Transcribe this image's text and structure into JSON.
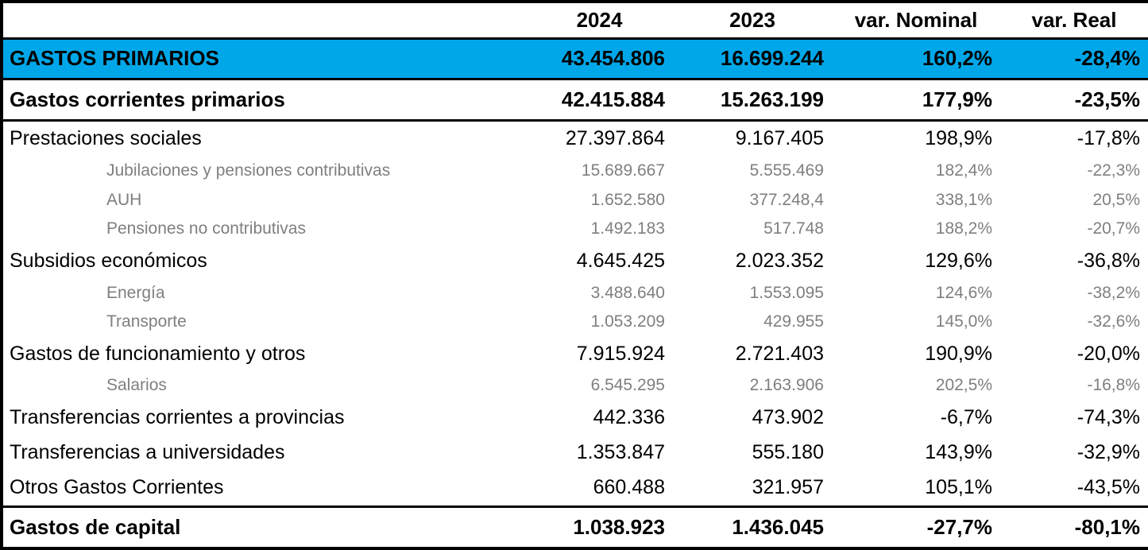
{
  "chart_data": {
    "type": "table",
    "columns": [
      "",
      "2024",
      "2023",
      "var. Nominal",
      "var. Real"
    ],
    "rows": [
      {
        "label": "GASTOS PRIMARIOS",
        "values": [
          "43.454.806",
          "16.699.244",
          "160,2%",
          "-28,4%"
        ],
        "style": "highlight"
      },
      {
        "label": "Gastos corrientes primarios",
        "values": [
          "42.415.884",
          "15.263.199",
          "177,9%",
          "-23,5%"
        ],
        "style": "boldline"
      },
      {
        "label": "Prestaciones sociales",
        "values": [
          "27.397.864",
          "9.167.405",
          "198,9%",
          "-17,8%"
        ],
        "style": "main"
      },
      {
        "label": "Jubilaciones y pensiones contributivas",
        "values": [
          "15.689.667",
          "5.555.469",
          "182,4%",
          "-22,3%"
        ],
        "style": "sub"
      },
      {
        "label": "AUH",
        "values": [
          "1.652.580",
          "377.248,4",
          "338,1%",
          "20,5%"
        ],
        "style": "sub"
      },
      {
        "label": "Pensiones no contributivas",
        "values": [
          "1.492.183",
          "517.748",
          "188,2%",
          "-20,7%"
        ],
        "style": "sub"
      },
      {
        "label": "Subsidios económicos",
        "values": [
          "4.645.425",
          "2.023.352",
          "129,6%",
          "-36,8%"
        ],
        "style": "main"
      },
      {
        "label": "Energía",
        "values": [
          "3.488.640",
          "1.553.095",
          "124,6%",
          "-38,2%"
        ],
        "style": "sub"
      },
      {
        "label": "Transporte",
        "values": [
          "1.053.209",
          "429.955",
          "145,0%",
          "-32,6%"
        ],
        "style": "sub"
      },
      {
        "label": "Gastos de funcionamiento y otros",
        "values": [
          "7.915.924",
          "2.721.403",
          "190,9%",
          "-20,0%"
        ],
        "style": "main"
      },
      {
        "label": "Salarios",
        "values": [
          "6.545.295",
          "2.163.906",
          "202,5%",
          "-16,8%"
        ],
        "style": "sub"
      },
      {
        "label": "Transferencias corrientes a provincias",
        "values": [
          "442.336",
          "473.902",
          "-6,7%",
          "-74,3%"
        ],
        "style": "main"
      },
      {
        "label": "Transferencias a universidades",
        "values": [
          "1.353.847",
          "555.180",
          "143,9%",
          "-32,9%"
        ],
        "style": "main"
      },
      {
        "label": "Otros Gastos Corrientes",
        "values": [
          "660.488",
          "321.957",
          "105,1%",
          "-43,5%"
        ],
        "style": "main"
      },
      {
        "label": "Gastos de capital",
        "values": [
          "1.038.923",
          "1.436.045",
          "-27,7%",
          "-80,1%"
        ],
        "style": "total"
      }
    ],
    "layout": {
      "grid": "horizontal rules only on header, highlight row, second row, and capital row",
      "legend_position": "none"
    }
  },
  "colors": {
    "highlight_blue": "#00A7E8",
    "sub_row_gray": "#7F7F7F",
    "border_black": "#000000",
    "background": "#FFFFFF"
  }
}
